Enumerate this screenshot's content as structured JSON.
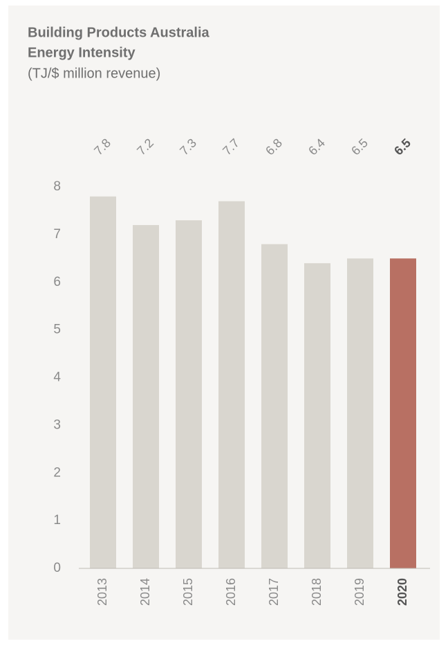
{
  "chart_data": {
    "type": "bar",
    "title": [
      "Building Products Australia",
      "Energy Intensity"
    ],
    "subtitle": "(TJ/$ million revenue)",
    "categories": [
      "2013",
      "2014",
      "2015",
      "2016",
      "2017",
      "2018",
      "2019",
      "2020"
    ],
    "values": [
      7.8,
      7.2,
      7.3,
      7.7,
      6.8,
      6.4,
      6.5,
      6.5
    ],
    "colors": [
      "#d9d6cf",
      "#d9d6cf",
      "#d9d6cf",
      "#d9d6cf",
      "#d9d6cf",
      "#d9d6cf",
      "#d9d6cf",
      "#b87063"
    ],
    "ylim": [
      0,
      8
    ],
    "yticks": [
      0,
      1,
      2,
      3,
      4,
      5,
      6,
      7,
      8
    ],
    "grid": false
  }
}
